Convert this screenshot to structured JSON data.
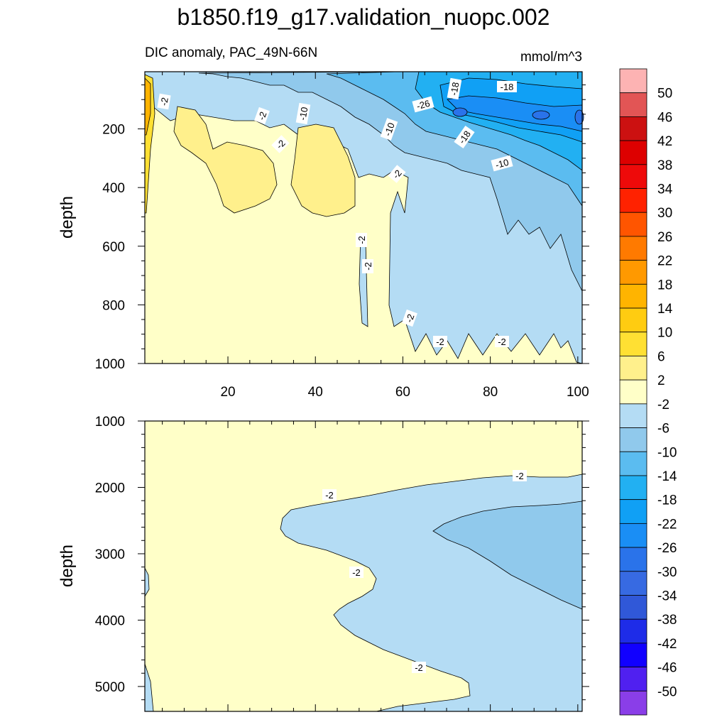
{
  "chart_data": {
    "type": "contour",
    "title": "b1850.f19_g17.validation_nuopc.002",
    "subtitle_left": "DIC anomaly, PAC_49N-66N",
    "units": "mmol/m^3",
    "colorbar": {
      "levels": [
        "50",
        "46",
        "42",
        "38",
        "34",
        "30",
        "26",
        "22",
        "18",
        "14",
        "10",
        "6",
        "2",
        "-2",
        "-6",
        "-10",
        "-14",
        "-18",
        "-22",
        "-26",
        "-30",
        "-34",
        "-38",
        "-42",
        "-46",
        "-50"
      ],
      "colors": [
        "#fdb3b3",
        "#e25555",
        "#cc1111",
        "#dd0000",
        "#ee0a0a",
        "#ff2200",
        "#ff5500",
        "#ff7a00",
        "#ff9900",
        "#ffb400",
        "#ffcc11",
        "#ffe033",
        "#fff08c",
        "#ffffc8",
        "#b4dcf4",
        "#90c9ec",
        "#5bbcf0",
        "#22b0f2",
        "#10a0f5",
        "#1a8ef5",
        "#2a73ea",
        "#376ae2",
        "#3058d8",
        "#1e2ce8",
        "#1100ff",
        "#5020f0",
        "#8a3ee8"
      ]
    },
    "panels": [
      {
        "name": "upper",
        "xlim": [
          1,
          101
        ],
        "ylim": [
          1000,
          5
        ],
        "x_ticks": [
          "20",
          "40",
          "60",
          "80",
          "100"
        ],
        "y_ticks": [
          "200",
          "400",
          "600",
          "800",
          "1000"
        ],
        "ylabel": "depth",
        "contour_labels": [
          "-2",
          "-2",
          "-10",
          "-2",
          "-10",
          "-2",
          "-18",
          "-26",
          "-18",
          "-18",
          "-10",
          "-2",
          "-2",
          "-2",
          "-2",
          "-2"
        ]
      },
      {
        "name": "lower",
        "xlim": [
          1,
          101
        ],
        "ylim": [
          1000,
          5375
        ],
        "x_ticks": [],
        "y_ticks": [
          "1000",
          "2000",
          "3000",
          "4000",
          "5000"
        ],
        "ylabel": "depth",
        "contour_labels": [
          "-2",
          "-2",
          "-2",
          "-2"
        ]
      }
    ]
  }
}
